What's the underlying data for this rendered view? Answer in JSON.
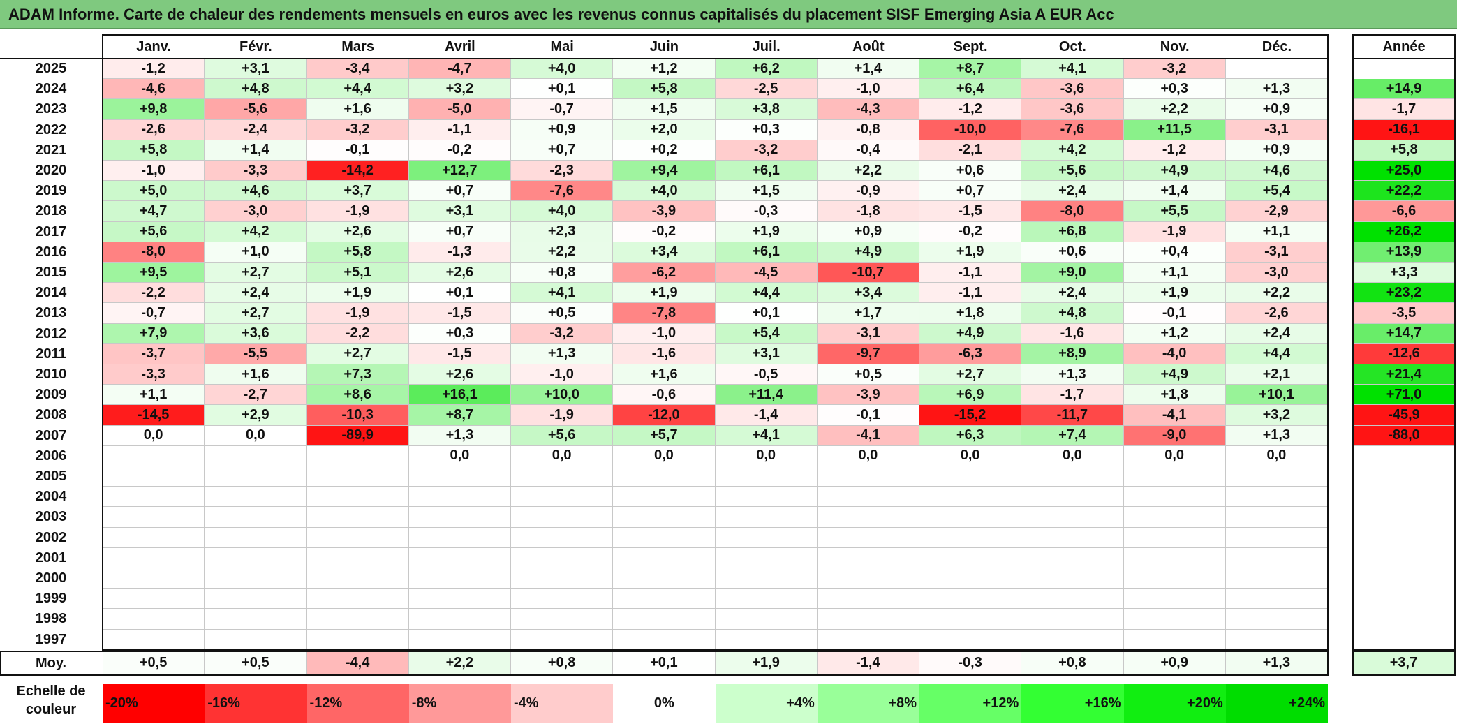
{
  "title": "ADAM Informe. Carte de chaleur des rendements mensuels en euros avec les revenus connus capitalisés du placement SISF Emerging Asia A EUR Acc",
  "chart_data": {
    "type": "heatmap",
    "months": [
      "Janv.",
      "Févr.",
      "Mars",
      "Avril",
      "Mai",
      "Juin",
      "Juil.",
      "Août",
      "Sept.",
      "Oct.",
      "Nov.",
      "Déc."
    ],
    "annual_header": "Année",
    "rows": [
      {
        "year": "2025",
        "values": [
          "-1,2",
          "+3,1",
          "-3,4",
          "-4,7",
          "+4,0",
          "+1,2",
          "+6,2",
          "+1,4",
          "+8,7",
          "+4,1",
          "-3,2",
          ""
        ],
        "annual": ""
      },
      {
        "year": "2024",
        "values": [
          "-4,6",
          "+4,8",
          "+4,4",
          "+3,2",
          "+0,1",
          "+5,8",
          "-2,5",
          "-1,0",
          "+6,4",
          "-3,6",
          "+0,3",
          "+1,3"
        ],
        "annual": "+14,9"
      },
      {
        "year": "2023",
        "values": [
          "+9,8",
          "-5,6",
          "+1,6",
          "-5,0",
          "-0,7",
          "+1,5",
          "+3,8",
          "-4,3",
          "-1,2",
          "-3,6",
          "+2,2",
          "+0,9"
        ],
        "annual": "-1,7"
      },
      {
        "year": "2022",
        "values": [
          "-2,6",
          "-2,4",
          "-3,2",
          "-1,1",
          "+0,9",
          "+2,0",
          "+0,3",
          "-0,8",
          "-10,0",
          "-7,6",
          "+11,5",
          "-3,1"
        ],
        "annual": "-16,1"
      },
      {
        "year": "2021",
        "values": [
          "+5,8",
          "+1,4",
          "-0,1",
          "-0,2",
          "+0,7",
          "+0,2",
          "-3,2",
          "-0,4",
          "-2,1",
          "+4,2",
          "-1,2",
          "+0,9"
        ],
        "annual": "+5,8"
      },
      {
        "year": "2020",
        "values": [
          "-1,0",
          "-3,3",
          "-14,2",
          "+12,7",
          "-2,3",
          "+9,4",
          "+6,1",
          "+2,2",
          "+0,6",
          "+5,6",
          "+4,9",
          "+4,6"
        ],
        "annual": "+25,0"
      },
      {
        "year": "2019",
        "values": [
          "+5,0",
          "+4,6",
          "+3,7",
          "+0,7",
          "-7,6",
          "+4,0",
          "+1,5",
          "-0,9",
          "+0,7",
          "+2,4",
          "+1,4",
          "+5,4"
        ],
        "annual": "+22,2"
      },
      {
        "year": "2018",
        "values": [
          "+4,7",
          "-3,0",
          "-1,9",
          "+3,1",
          "+4,0",
          "-3,9",
          "-0,3",
          "-1,8",
          "-1,5",
          "-8,0",
          "+5,5",
          "-2,9"
        ],
        "annual": "-6,6"
      },
      {
        "year": "2017",
        "values": [
          "+5,6",
          "+4,2",
          "+2,6",
          "+0,7",
          "+2,3",
          "-0,2",
          "+1,9",
          "+0,9",
          "-0,2",
          "+6,8",
          "-1,9",
          "+1,1"
        ],
        "annual": "+26,2"
      },
      {
        "year": "2016",
        "values": [
          "-8,0",
          "+1,0",
          "+5,8",
          "-1,3",
          "+2,2",
          "+3,4",
          "+6,1",
          "+4,9",
          "+1,9",
          "+0,6",
          "+0,4",
          "-3,1"
        ],
        "annual": "+13,9"
      },
      {
        "year": "2015",
        "values": [
          "+9,5",
          "+2,7",
          "+5,1",
          "+2,6",
          "+0,8",
          "-6,2",
          "-4,5",
          "-10,7",
          "-1,1",
          "+9,0",
          "+1,1",
          "-3,0"
        ],
        "annual": "+3,3"
      },
      {
        "year": "2014",
        "values": [
          "-2,2",
          "+2,4",
          "+1,9",
          "+0,1",
          "+4,1",
          "+1,9",
          "+4,4",
          "+3,4",
          "-1,1",
          "+2,4",
          "+1,9",
          "+2,2"
        ],
        "annual": "+23,2"
      },
      {
        "year": "2013",
        "values": [
          "-0,7",
          "+2,7",
          "-1,9",
          "-1,5",
          "+0,5",
          "-7,8",
          "+0,1",
          "+1,7",
          "+1,8",
          "+4,8",
          "-0,1",
          "-2,6"
        ],
        "annual": "-3,5"
      },
      {
        "year": "2012",
        "values": [
          "+7,9",
          "+3,6",
          "-2,2",
          "+0,3",
          "-3,2",
          "-1,0",
          "+5,4",
          "-3,1",
          "+4,9",
          "-1,6",
          "+1,2",
          "+2,4"
        ],
        "annual": "+14,7"
      },
      {
        "year": "2011",
        "values": [
          "-3,7",
          "-5,5",
          "+2,7",
          "-1,5",
          "+1,3",
          "-1,6",
          "+3,1",
          "-9,7",
          "-6,3",
          "+8,9",
          "-4,0",
          "+4,4"
        ],
        "annual": "-12,6"
      },
      {
        "year": "2010",
        "values": [
          "-3,3",
          "+1,6",
          "+7,3",
          "+2,6",
          "-1,0",
          "+1,6",
          "-0,5",
          "+0,5",
          "+2,7",
          "+1,3",
          "+4,9",
          "+2,1"
        ],
        "annual": "+21,4"
      },
      {
        "year": "2009",
        "values": [
          "+1,1",
          "-2,7",
          "+8,6",
          "+16,1",
          "+10,0",
          "-0,6",
          "+11,4",
          "-3,9",
          "+6,9",
          "-1,7",
          "+1,8",
          "+10,1"
        ],
        "annual": "+71,0"
      },
      {
        "year": "2008",
        "values": [
          "-14,5",
          "+2,9",
          "-10,3",
          "+8,7",
          "-1,9",
          "-12,0",
          "-1,4",
          "-0,1",
          "-15,2",
          "-11,7",
          "-4,1",
          "+3,2"
        ],
        "annual": "-45,9"
      },
      {
        "year": "2007",
        "values": [
          "0,0",
          "0,0",
          "-89,9",
          "+1,3",
          "+5,6",
          "+5,7",
          "+4,1",
          "-4,1",
          "+6,3",
          "+7,4",
          "-9,0",
          "+1,3"
        ],
        "annual": "-88,0"
      },
      {
        "year": "2006",
        "values": [
          "",
          "",
          "",
          "0,0",
          "0,0",
          "0,0",
          "0,0",
          "0,0",
          "0,0",
          "0,0",
          "0,0",
          "0,0"
        ],
        "annual": ""
      },
      {
        "year": "2005",
        "values": [
          "",
          "",
          "",
          "",
          "",
          "",
          "",
          "",
          "",
          "",
          "",
          ""
        ],
        "annual": ""
      },
      {
        "year": "2004",
        "values": [
          "",
          "",
          "",
          "",
          "",
          "",
          "",
          "",
          "",
          "",
          "",
          ""
        ],
        "annual": ""
      },
      {
        "year": "2003",
        "values": [
          "",
          "",
          "",
          "",
          "",
          "",
          "",
          "",
          "",
          "",
          "",
          ""
        ],
        "annual": ""
      },
      {
        "year": "2002",
        "values": [
          "",
          "",
          "",
          "",
          "",
          "",
          "",
          "",
          "",
          "",
          "",
          ""
        ],
        "annual": ""
      },
      {
        "year": "2001",
        "values": [
          "",
          "",
          "",
          "",
          "",
          "",
          "",
          "",
          "",
          "",
          "",
          ""
        ],
        "annual": ""
      },
      {
        "year": "2000",
        "values": [
          "",
          "",
          "",
          "",
          "",
          "",
          "",
          "",
          "",
          "",
          "",
          ""
        ],
        "annual": ""
      },
      {
        "year": "1999",
        "values": [
          "",
          "",
          "",
          "",
          "",
          "",
          "",
          "",
          "",
          "",
          "",
          ""
        ],
        "annual": ""
      },
      {
        "year": "1998",
        "values": [
          "",
          "",
          "",
          "",
          "",
          "",
          "",
          "",
          "",
          "",
          "",
          ""
        ],
        "annual": ""
      },
      {
        "year": "1997",
        "values": [
          "",
          "",
          "",
          "",
          "",
          "",
          "",
          "",
          "",
          "",
          "",
          ""
        ],
        "annual": ""
      }
    ],
    "average": {
      "label": "Moy.",
      "values": [
        "+0,5",
        "+0,5",
        "-4,4",
        "+2,2",
        "+0,8",
        "+0,1",
        "+1,9",
        "-1,4",
        "-0,3",
        "+0,8",
        "+0,9",
        "+1,3"
      ],
      "annual": "+3,7"
    },
    "color_scale": {
      "label": "Echelle de couleur",
      "stops": [
        {
          "label": "-20%",
          "value": -20,
          "color": "#ff0000"
        },
        {
          "label": "-16%",
          "value": -16,
          "color": "#ff3333"
        },
        {
          "label": "-12%",
          "value": -12,
          "color": "#ff6666"
        },
        {
          "label": "-8%",
          "value": -8,
          "color": "#ff9999"
        },
        {
          "label": "-4%",
          "value": -4,
          "color": "#ffcccc"
        },
        {
          "label": "0%",
          "value": 0,
          "color": "#ffffff"
        },
        {
          "label": "+4%",
          "value": 4,
          "color": "#ccffcc"
        },
        {
          "label": "+8%",
          "value": 8,
          "color": "#99ff99"
        },
        {
          "label": "+12%",
          "value": 12,
          "color": "#66ff66"
        },
        {
          "label": "+16%",
          "value": 16,
          "color": "#33ff33"
        },
        {
          "label": "+20%",
          "value": 20,
          "color": "#11ee11"
        },
        {
          "label": "+24%",
          "value": 24,
          "color": "#00dd00"
        }
      ]
    }
  }
}
